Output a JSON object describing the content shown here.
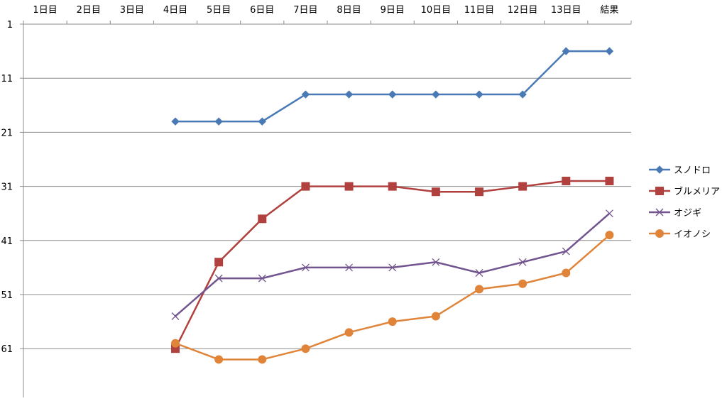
{
  "chart_data": {
    "type": "line",
    "categories": [
      "1日目",
      "2日目",
      "3日目",
      "4日目",
      "5日目",
      "6日目",
      "7日目",
      "8日目",
      "9日目",
      "10日目",
      "11日目",
      "12日目",
      "13日目",
      "結果"
    ],
    "y_ticks": [
      1,
      11,
      21,
      31,
      41,
      51,
      61
    ],
    "ylim": [
      1,
      70
    ],
    "y_reversed": true,
    "x_axis_position": "top",
    "grid": true,
    "legend_position": "right",
    "series": [
      {
        "name": "スノドロ",
        "color": "#4a7ab5",
        "marker": "diamond",
        "values": [
          null,
          null,
          null,
          19,
          19,
          19,
          14,
          14,
          14,
          14,
          14,
          14,
          6,
          6
        ]
      },
      {
        "name": "ブルメリア",
        "color": "#b0413e",
        "marker": "square",
        "values": [
          null,
          null,
          null,
          61,
          45,
          37,
          31,
          31,
          31,
          32,
          32,
          31,
          30,
          30
        ]
      },
      {
        "name": "オジギ",
        "color": "#72548f",
        "marker": "x",
        "values": [
          null,
          null,
          null,
          55,
          48,
          48,
          46,
          46,
          46,
          45,
          47,
          45,
          43,
          36
        ]
      },
      {
        "name": "イオノシ",
        "color": "#e0843a",
        "marker": "circle",
        "values": [
          null,
          null,
          null,
          60,
          63,
          63,
          61,
          58,
          56,
          55,
          50,
          49,
          47,
          40
        ]
      }
    ]
  }
}
